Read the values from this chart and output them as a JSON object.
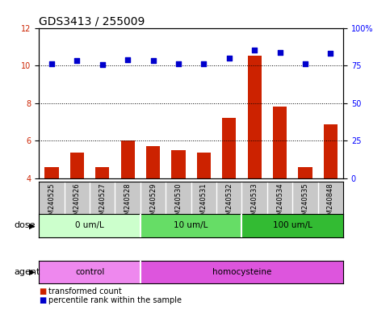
{
  "title": "GDS3413 / 255009",
  "samples": [
    "GSM240525",
    "GSM240526",
    "GSM240527",
    "GSM240528",
    "GSM240529",
    "GSM240530",
    "GSM240531",
    "GSM240532",
    "GSM240533",
    "GSM240534",
    "GSM240535",
    "GSM240848"
  ],
  "transformed_count": [
    4.6,
    5.35,
    4.6,
    6.0,
    5.7,
    5.5,
    5.35,
    7.2,
    10.5,
    7.8,
    4.6,
    6.85
  ],
  "percentile_rank": [
    10.1,
    10.25,
    10.05,
    10.3,
    10.28,
    10.1,
    10.1,
    10.4,
    10.8,
    10.7,
    10.1,
    10.65
  ],
  "ylim_left": [
    4,
    12
  ],
  "ylim_right": [
    0,
    100
  ],
  "yticks_left": [
    4,
    6,
    8,
    10,
    12
  ],
  "yticks_right": [
    0,
    25,
    50,
    75,
    100
  ],
  "ytick_labels_right": [
    "0",
    "25",
    "50",
    "75",
    "100%"
  ],
  "bar_color": "#cc2200",
  "scatter_color": "#0000cc",
  "label_area_color": "#c8c8c8",
  "dose_groups": [
    {
      "label": "0 um/L",
      "start": 0,
      "end": 3,
      "color": "#ccffcc"
    },
    {
      "label": "10 um/L",
      "start": 4,
      "end": 7,
      "color": "#66dd66"
    },
    {
      "label": "100 um/L",
      "start": 8,
      "end": 11,
      "color": "#33bb33"
    }
  ],
  "agent_control": {
    "label": "control",
    "start": 0,
    "end": 3,
    "color": "#ee88ee"
  },
  "agent_homocysteine": {
    "label": "homocysteine",
    "start": 4,
    "end": 11,
    "color": "#dd55dd"
  },
  "dose_row_label": "dose",
  "agent_row_label": "agent",
  "legend_items": [
    {
      "label": "transformed count",
      "color": "#cc2200"
    },
    {
      "label": "percentile rank within the sample",
      "color": "#0000cc"
    }
  ],
  "title_fontsize": 10,
  "tick_fontsize": 7,
  "bar_width": 0.55
}
